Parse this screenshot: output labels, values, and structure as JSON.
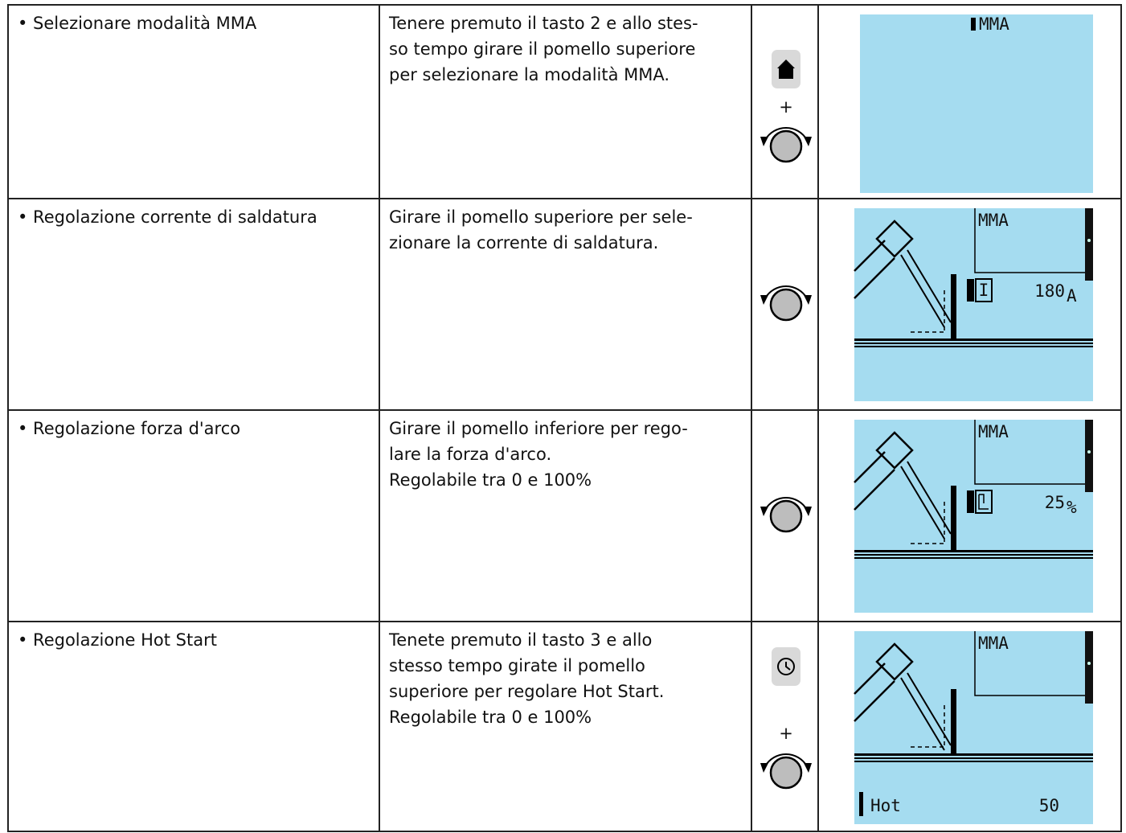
{
  "rows": [
    {
      "step": "• Selezionare modalità MMA",
      "description": [
        "Tenere premuto il tasto 2 e allo stes-",
        "so tempo girare il pomello superiore",
        "per selezionare la modalità MMA."
      ],
      "controls": {
        "plus": "+"
      },
      "display": {
        "mode": "MMA"
      }
    },
    {
      "step": "• Regolazione corrente di saldatura",
      "description": [
        "Girare il pomello superiore per sele-",
        "zionare la corrente di saldatura."
      ],
      "display": {
        "mode": "MMA",
        "symbol": "I",
        "value": "180",
        "unit": "A"
      }
    },
    {
      "step": "• Regolazione forza d'arco",
      "description": [
        "Girare il pomello inferiore per rego-",
        "lare la forza d'arco.",
        "Regolabile tra 0 e 100%"
      ],
      "display": {
        "mode": "MMA",
        "value": "25",
        "unit": "%"
      }
    },
    {
      "step": "• Regolazione Hot Start",
      "description": [
        "Tenete premuto il tasto 3 e allo",
        "stesso tempo girate il pomello",
        "superiore per regolare Hot Start.",
        "Regolabile tra 0 e 100%"
      ],
      "controls": {
        "plus": "+"
      },
      "display": {
        "mode": "MMA",
        "label": "Hot",
        "value": "50"
      }
    }
  ]
}
